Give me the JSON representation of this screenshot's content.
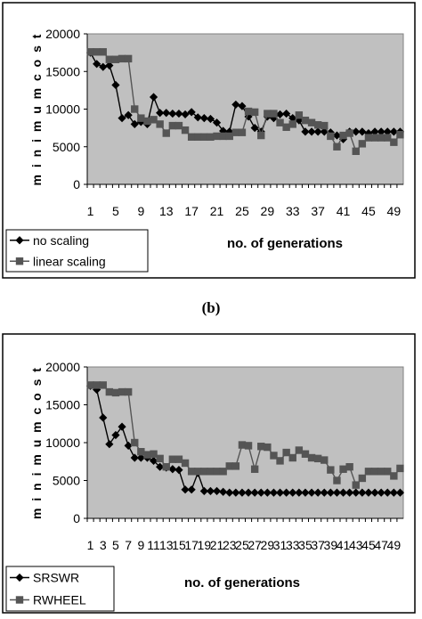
{
  "panel_label": "(b)",
  "colors": {
    "plot_bg": "#c0c0c0",
    "series1": "#000000",
    "series2": "#555555",
    "frame": "#000000"
  },
  "chart_data": [
    {
      "type": "line",
      "xlabel": "no. of generations",
      "ylabel": "m i n i m u m  c o s t",
      "ylim": [
        0,
        20000
      ],
      "yticks": [
        0,
        5000,
        10000,
        15000,
        20000
      ],
      "ytick_labels": [
        "0",
        "5000",
        "10000",
        "15000",
        "20000"
      ],
      "x": [
        1,
        2,
        3,
        4,
        5,
        6,
        7,
        8,
        9,
        10,
        11,
        12,
        13,
        14,
        15,
        16,
        17,
        18,
        19,
        20,
        21,
        22,
        23,
        24,
        25,
        26,
        27,
        28,
        29,
        30,
        31,
        32,
        33,
        34,
        35,
        36,
        37,
        38,
        39,
        40,
        41,
        42,
        43,
        44,
        45,
        46,
        47,
        48,
        49,
        50
      ],
      "xticks": [
        1,
        5,
        9,
        13,
        17,
        21,
        25,
        29,
        33,
        37,
        41,
        45,
        49
      ],
      "xtick_labels": [
        "1",
        "5",
        "9",
        "13",
        "17",
        "21",
        "25",
        "29",
        "33",
        "37",
        "41",
        "45",
        "49"
      ],
      "grid": false,
      "legend_position": "bottom-left",
      "series": [
        {
          "name": "no scaling",
          "marker": "diamond",
          "values": [
            17500,
            16000,
            15600,
            15800,
            13200,
            8800,
            9200,
            8000,
            8300,
            8000,
            11600,
            9500,
            9500,
            9400,
            9400,
            9300,
            9600,
            8900,
            8800,
            8700,
            8200,
            7100,
            7000,
            10600,
            10400,
            9000,
            7500,
            7000,
            9000,
            8800,
            9300,
            9400,
            8800,
            8500,
            7000,
            7000,
            7000,
            7000,
            6900,
            6500,
            6000,
            7000,
            7000,
            7000,
            6800,
            7000,
            7000,
            7000,
            7000,
            7000
          ]
        },
        {
          "name": "linear scaling",
          "marker": "square",
          "values": [
            17600,
            17600,
            17600,
            16600,
            16600,
            16700,
            16700,
            10000,
            8800,
            8400,
            8600,
            8000,
            6800,
            7800,
            7800,
            7200,
            6300,
            6300,
            6300,
            6300,
            6400,
            6400,
            6400,
            6900,
            6900,
            9700,
            9600,
            6500,
            9400,
            9400,
            8200,
            7600,
            8000,
            9200,
            8500,
            8200,
            7900,
            7800,
            6400,
            5000,
            6500,
            6800,
            4400,
            5400,
            6200,
            6200,
            6200,
            6200,
            5600,
            6600
          ]
        }
      ]
    },
    {
      "type": "line",
      "xlabel": "no. of generations",
      "ylabel": "m i n i m u m  c o s t",
      "ylim": [
        0,
        20000
      ],
      "yticks": [
        0,
        5000,
        10000,
        15000,
        20000
      ],
      "ytick_labels": [
        "0",
        "5000",
        "10000",
        "15000",
        "20000"
      ],
      "x": [
        1,
        2,
        3,
        4,
        5,
        6,
        7,
        8,
        9,
        10,
        11,
        12,
        13,
        14,
        15,
        16,
        17,
        18,
        19,
        20,
        21,
        22,
        23,
        24,
        25,
        26,
        27,
        28,
        29,
        30,
        31,
        32,
        33,
        34,
        35,
        36,
        37,
        38,
        39,
        40,
        41,
        42,
        43,
        44,
        45,
        46,
        47,
        48,
        49,
        50
      ],
      "xticks": [
        1,
        3,
        5,
        7,
        9,
        11,
        13,
        15,
        17,
        19,
        21,
        23,
        25,
        27,
        29,
        31,
        33,
        35,
        37,
        39,
        41,
        43,
        45,
        47,
        49
      ],
      "xtick_labels": [
        "1",
        "3",
        "5",
        "7",
        "9",
        "11",
        "13",
        "15",
        "17",
        "19",
        "21",
        "23",
        "25",
        "27",
        "29",
        "31",
        "33",
        "35",
        "37",
        "39",
        "41",
        "43",
        "45",
        "47",
        "49"
      ],
      "grid": false,
      "legend_position": "bottom-left",
      "series": [
        {
          "name": "SRSWR",
          "marker": "diamond",
          "values": [
            17500,
            17000,
            13300,
            9800,
            11000,
            12100,
            9600,
            8000,
            8000,
            8000,
            7600,
            6800,
            6700,
            6500,
            6400,
            3800,
            3800,
            6000,
            3600,
            3600,
            3600,
            3500,
            3400,
            3400,
            3400,
            3400,
            3400,
            3400,
            3400,
            3400,
            3400,
            3400,
            3400,
            3400,
            3400,
            3400,
            3400,
            3400,
            3400,
            3400,
            3400,
            3400,
            3400,
            3400,
            3400,
            3400,
            3400,
            3400,
            3400,
            3400
          ]
        },
        {
          "name": "RWHEEL",
          "marker": "square",
          "values": [
            17600,
            17600,
            17600,
            16700,
            16600,
            16700,
            16700,
            10000,
            8800,
            8400,
            8500,
            7900,
            6800,
            7800,
            7800,
            7300,
            6200,
            6200,
            6200,
            6200,
            6200,
            6200,
            6900,
            6900,
            9700,
            9600,
            6500,
            9500,
            9400,
            8300,
            7600,
            8700,
            8000,
            9000,
            8500,
            8000,
            7900,
            7700,
            6400,
            5000,
            6500,
            6800,
            4400,
            5300,
            6200,
            6200,
            6200,
            6200,
            5600,
            6600
          ]
        }
      ]
    }
  ]
}
